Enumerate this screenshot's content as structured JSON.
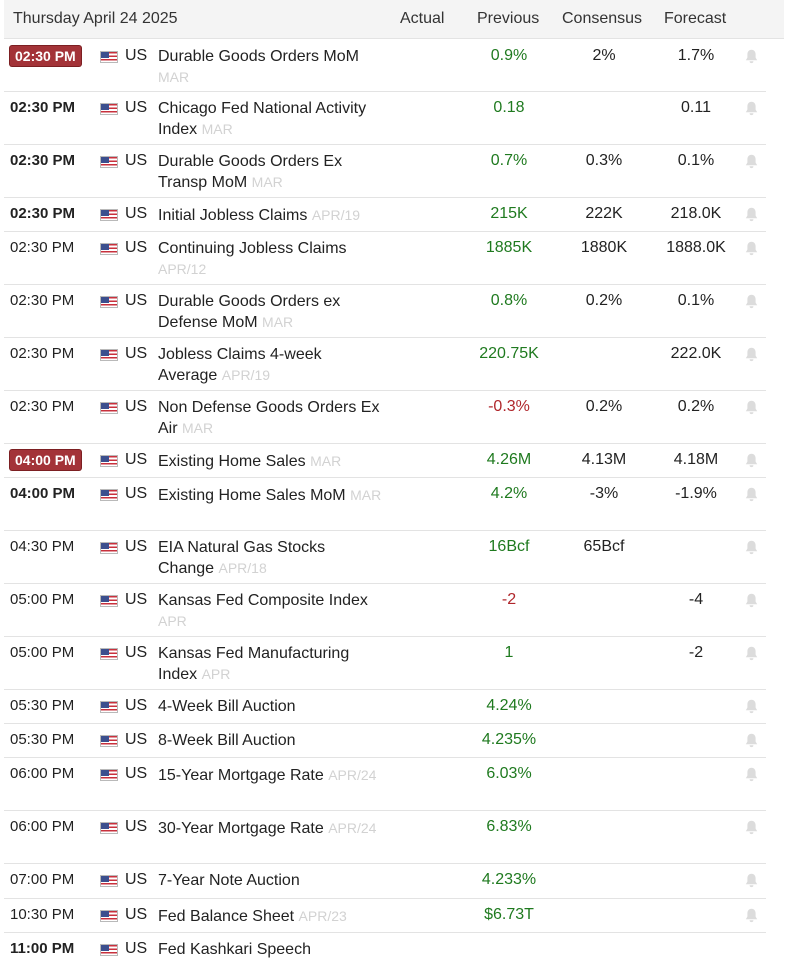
{
  "header": {
    "date": "Thursday April 24 2025",
    "actual": "Actual",
    "previous": "Previous",
    "consensus": "Consensus",
    "forecast": "Forecast"
  },
  "colors": {
    "badge": "#a33338",
    "positive": "#1f7a1f",
    "negative": "#b0262b",
    "muted_period": "#d2d2d2"
  },
  "rows": [
    {
      "time": "02:30 PM",
      "time_style": "badge",
      "country": "US",
      "event": "Durable Goods Orders MoM",
      "period": "MAR",
      "actual": "",
      "previous": "0.9%",
      "previous_color": "green",
      "consensus": "2%",
      "forecast": "1.7%"
    },
    {
      "time": "02:30 PM",
      "time_style": "bold",
      "country": "US",
      "event": "Chicago Fed National Activity Index",
      "period": "MAR",
      "actual": "",
      "previous": "0.18",
      "previous_color": "green",
      "consensus": "",
      "forecast": "0.11"
    },
    {
      "time": "02:30 PM",
      "time_style": "bold",
      "country": "US",
      "event": "Durable Goods Orders Ex Transp MoM",
      "period": "MAR",
      "actual": "",
      "previous": "0.7%",
      "previous_color": "green",
      "consensus": "0.3%",
      "forecast": "0.1%"
    },
    {
      "time": "02:30 PM",
      "time_style": "bold",
      "country": "US",
      "event": "Initial Jobless Claims",
      "period": "APR/19",
      "actual": "",
      "previous": "215K",
      "previous_color": "green",
      "consensus": "222K",
      "forecast": "218.0K"
    },
    {
      "time": "02:30 PM",
      "time_style": "normal",
      "country": "US",
      "event": "Continuing Jobless Claims",
      "period": "APR/12",
      "actual": "",
      "previous": "1885K",
      "previous_color": "green",
      "consensus": "1880K",
      "forecast": "1888.0K"
    },
    {
      "time": "02:30 PM",
      "time_style": "normal",
      "country": "US",
      "event": "Durable Goods Orders ex Defense MoM",
      "period": "MAR",
      "actual": "",
      "previous": "0.8%",
      "previous_color": "green",
      "consensus": "0.2%",
      "forecast": "0.1%"
    },
    {
      "time": "02:30 PM",
      "time_style": "normal",
      "country": "US",
      "event": "Jobless Claims 4-week Average",
      "period": "APR/19",
      "actual": "",
      "previous": "220.75K",
      "previous_color": "green",
      "consensus": "",
      "forecast": "222.0K"
    },
    {
      "time": "02:30 PM",
      "time_style": "normal",
      "country": "US",
      "event": "Non Defense Goods Orders Ex Air",
      "period": "MAR",
      "actual": "",
      "previous": "-0.3%",
      "previous_color": "red",
      "consensus": "0.2%",
      "forecast": "0.2%"
    },
    {
      "time": "04:00 PM",
      "time_style": "badge",
      "country": "US",
      "event": "Existing Home Sales",
      "period": "MAR",
      "actual": "",
      "previous": "4.26M",
      "previous_color": "green",
      "consensus": "4.13M",
      "forecast": "4.18M"
    },
    {
      "time": "04:00 PM",
      "time_style": "bold",
      "country": "US",
      "event": "Existing Home Sales MoM",
      "period": "MAR",
      "actual": "",
      "previous": "4.2%",
      "previous_color": "green",
      "consensus": "-3%",
      "forecast": "-1.9%"
    },
    {
      "time": "04:30 PM",
      "time_style": "normal",
      "country": "US",
      "event": "EIA Natural Gas Stocks Change",
      "period": "APR/18",
      "actual": "",
      "previous": "16Bcf",
      "previous_color": "green",
      "consensus": "65Bcf",
      "forecast": ""
    },
    {
      "time": "05:00 PM",
      "time_style": "normal",
      "country": "US",
      "event": "Kansas Fed Composite Index",
      "period": "APR",
      "actual": "",
      "previous": "-2",
      "previous_color": "red",
      "consensus": "",
      "forecast": "-4"
    },
    {
      "time": "05:00 PM",
      "time_style": "normal",
      "country": "US",
      "event": "Kansas Fed Manufacturing Index",
      "period": "APR",
      "actual": "",
      "previous": "1",
      "previous_color": "green",
      "consensus": "",
      "forecast": "-2"
    },
    {
      "time": "05:30 PM",
      "time_style": "normal",
      "country": "US",
      "event": "4-Week Bill Auction",
      "period": "",
      "actual": "",
      "previous": "4.24%",
      "previous_color": "green",
      "consensus": "",
      "forecast": ""
    },
    {
      "time": "05:30 PM",
      "time_style": "normal",
      "country": "US",
      "event": "8-Week Bill Auction",
      "period": "",
      "actual": "",
      "previous": "4.235%",
      "previous_color": "green",
      "consensus": "",
      "forecast": ""
    },
    {
      "time": "06:00 PM",
      "time_style": "normal",
      "country": "US",
      "event": "15-Year Mortgage Rate",
      "period": "APR/24",
      "actual": "",
      "previous": "6.03%",
      "previous_color": "green",
      "consensus": "",
      "forecast": ""
    },
    {
      "time": "06:00 PM",
      "time_style": "normal",
      "country": "US",
      "event": "30-Year Mortgage Rate",
      "period": "APR/24",
      "actual": "",
      "previous": "6.83%",
      "previous_color": "green",
      "consensus": "",
      "forecast": ""
    },
    {
      "time": "07:00 PM",
      "time_style": "normal",
      "country": "US",
      "event": "7-Year Note Auction",
      "period": "",
      "actual": "",
      "previous": "4.233%",
      "previous_color": "green",
      "consensus": "",
      "forecast": ""
    },
    {
      "time": "10:30 PM",
      "time_style": "normal",
      "country": "US",
      "event": "Fed Balance Sheet",
      "period": "APR/23",
      "actual": "",
      "previous": "$6.73T",
      "previous_color": "green",
      "consensus": "",
      "forecast": ""
    },
    {
      "time": "11:00 PM",
      "time_style": "bold",
      "country": "US",
      "event": "Fed Kashkari Speech",
      "period": "",
      "actual": "",
      "previous": "",
      "previous_color": "green",
      "consensus": "",
      "forecast": "",
      "no_bell": true
    }
  ]
}
